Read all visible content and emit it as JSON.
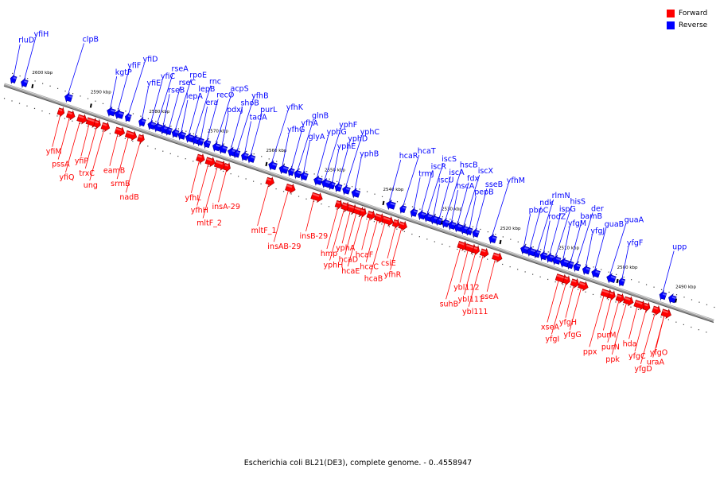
{
  "caption": "Escherichia coli BL21(DE3), complete genome. - 0..4558947",
  "legend": [
    {
      "label": "Forward",
      "color": "#ff0000"
    },
    {
      "label": "Reverse",
      "color": "#0000ff"
    }
  ],
  "colors": {
    "forward": "#ff0000",
    "reverse": "#0000ff",
    "axis": "#808080"
  },
  "ticks": [
    "2600 kbp",
    "2590 kbp",
    "2580 kbp",
    "2570 kbp",
    "2560 kbp",
    "2550 kbp",
    "2540 kbp",
    "2530 kbp",
    "2520 kbp",
    "2510 kbp",
    "2500 kbp",
    "2490 kbp"
  ],
  "reverse_genes": [
    "rluD",
    "yfiH",
    "clpB",
    "kgtP",
    "yfiF",
    "yfiD",
    "yfiE",
    "yfiC",
    "rseA",
    "rseB",
    "rseC",
    "rpoE",
    "lepA",
    "lepB",
    "rnc",
    "era",
    "recO",
    "acpS",
    "pdxJ",
    "shoB",
    "yfhB",
    "tadA",
    "purL",
    "yfhK",
    "yfhG",
    "yfhA",
    "glnB",
    "glyA",
    "yphG",
    "yphF",
    "yphE",
    "yphD",
    "yphC",
    "yphB",
    "hcaR",
    "hcaT",
    "trmJ",
    "iscR",
    "iscS",
    "iscU",
    "iscA",
    "hscB",
    "hscA",
    "fdx",
    "iscX",
    "pepB",
    "sseB",
    "yfhM",
    "pbpC",
    "ndk",
    "rlmN",
    "rodZ",
    "ispG",
    "hisS",
    "yfgM",
    "bamB",
    "der",
    "yfgJ",
    "guaB",
    "guaA",
    "yfgF",
    "upp"
  ],
  "forward_genes": [
    "yfiM",
    "pssA",
    "yfiQ",
    "yfiP",
    "trxC",
    "ung",
    "eamB",
    "srmB",
    "nadB",
    "yfhL",
    "yfhH",
    "mltF_2",
    "insA-29",
    "mltF_1",
    "insAB-29",
    "insB-29",
    "hmp",
    "yphH",
    "yphA",
    "hcaD",
    "hcaE",
    "hcaF",
    "hcaC",
    "hcaB",
    "csiE",
    "yfhR",
    "suhB",
    "ybl112",
    "ybl111",
    "ybl111",
    "sseA",
    "xseA",
    "yfgI",
    "yfgH",
    "yfgG",
    "ppx",
    "purM",
    "purN",
    "ppk",
    "hda",
    "yfgC",
    "yfgD",
    "yfgO",
    "uraA"
  ]
}
